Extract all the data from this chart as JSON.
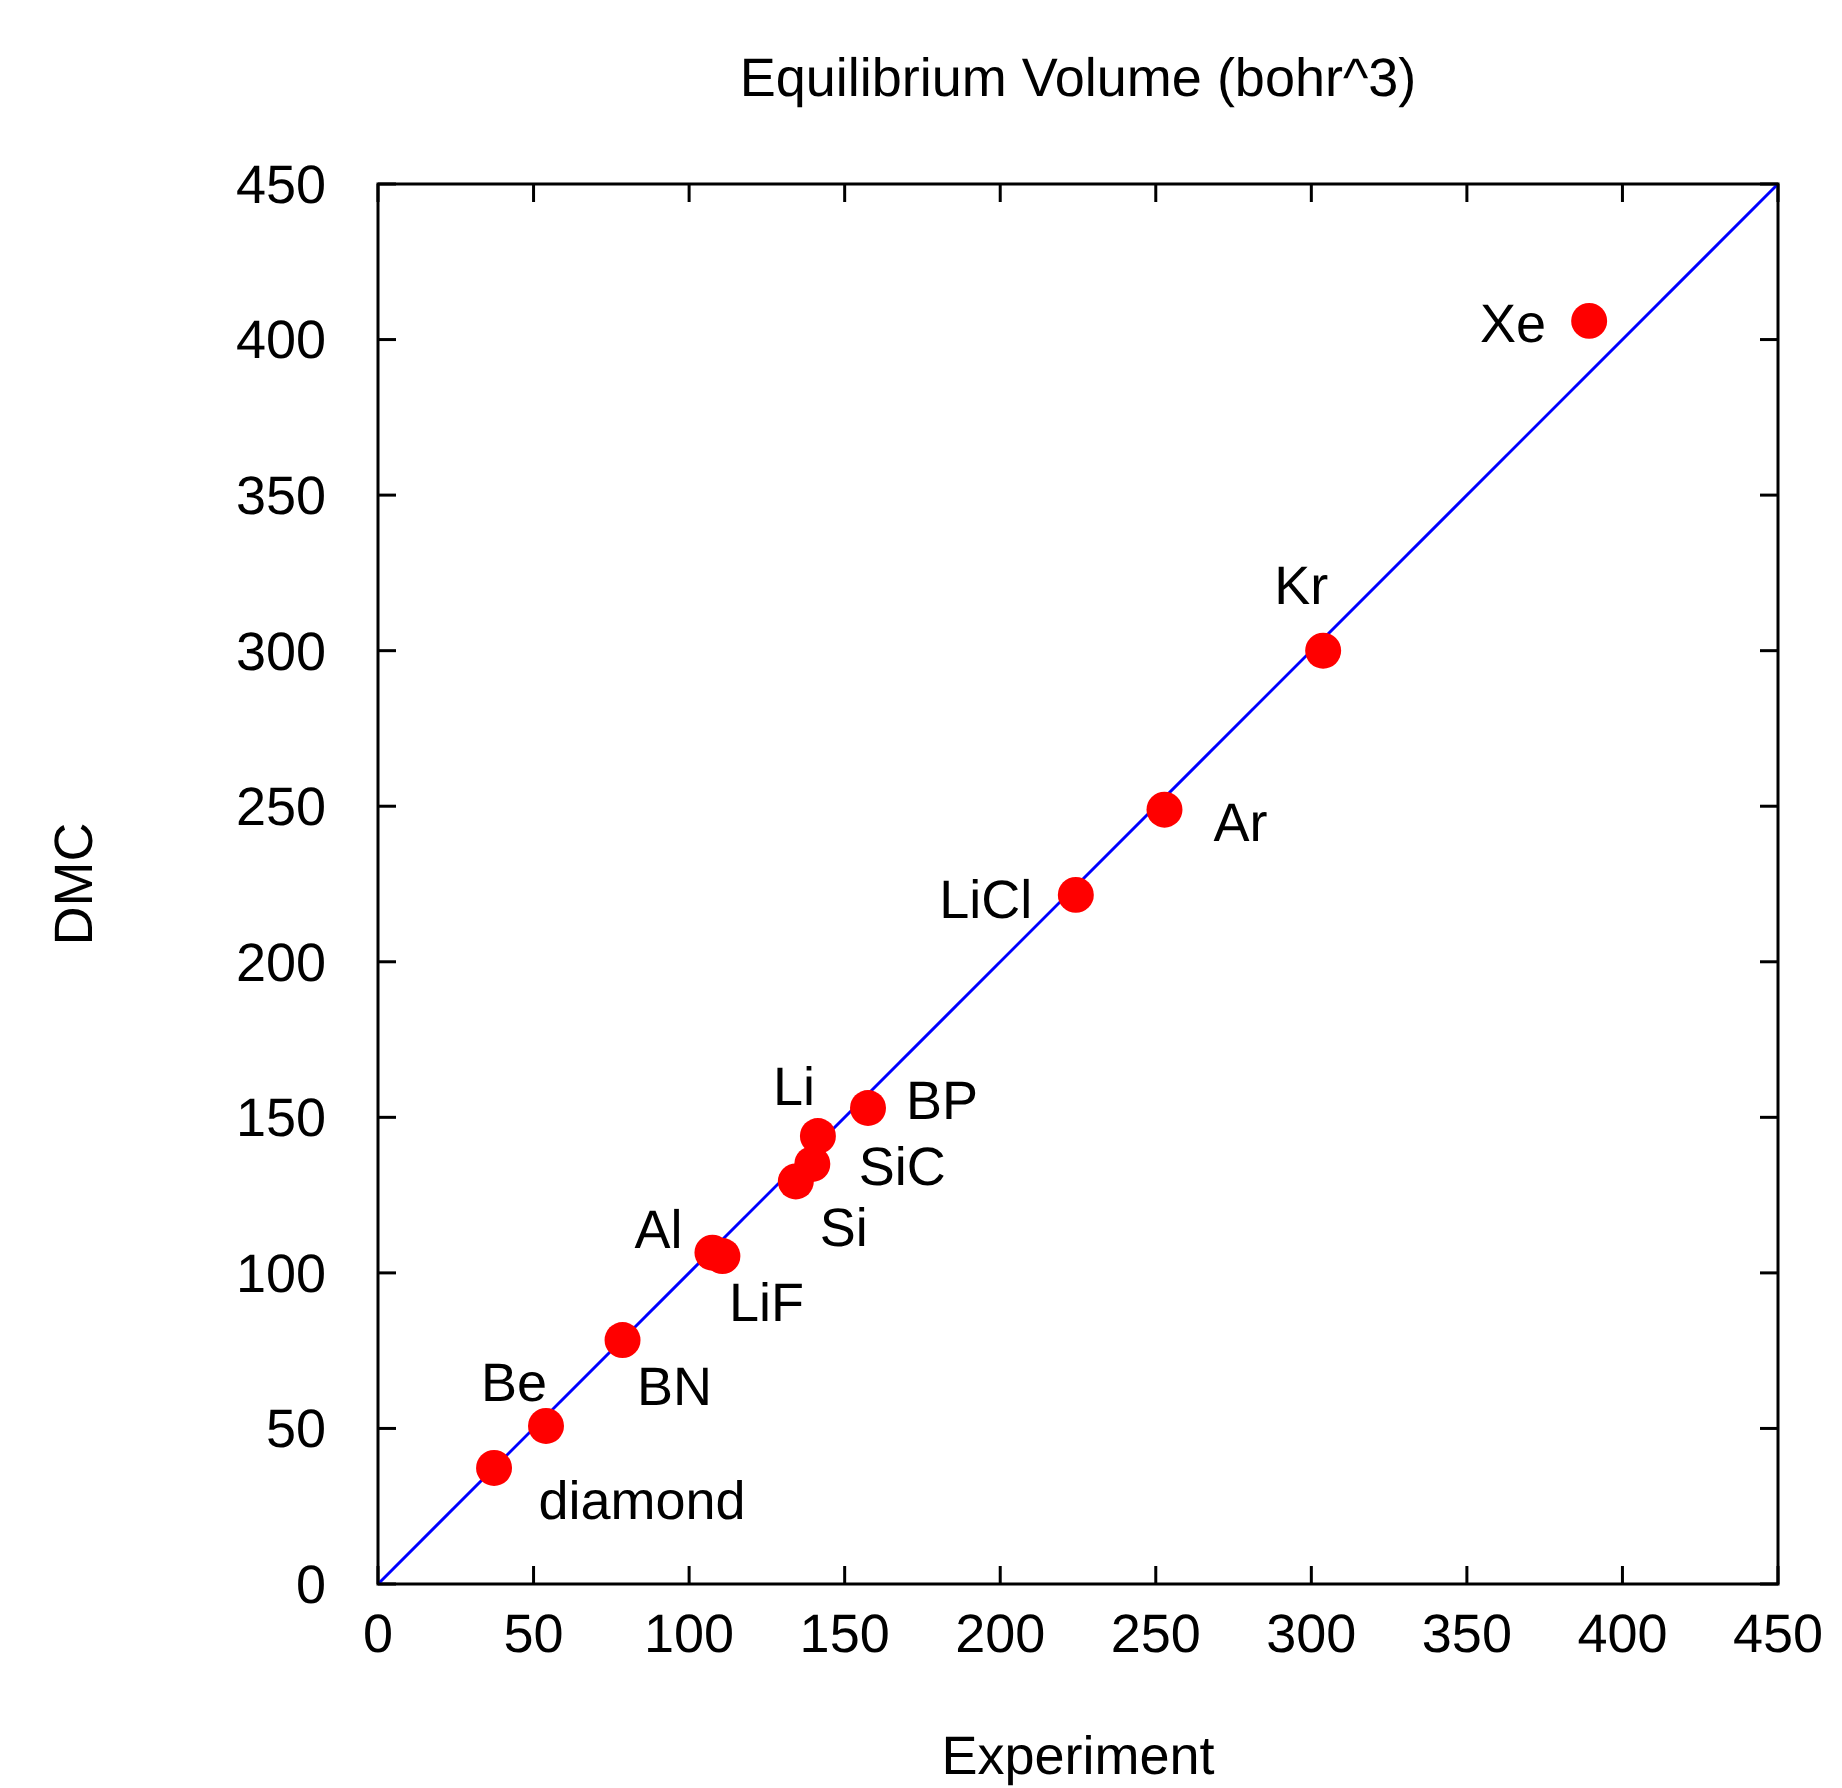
{
  "chart_data": {
    "type": "scatter",
    "title": "Equilibrium Volume (bohr^3)",
    "xlabel": "Experiment",
    "ylabel": "DMC",
    "xlim": [
      0,
      450
    ],
    "ylim": [
      0,
      450
    ],
    "xticks": [
      0,
      50,
      100,
      150,
      200,
      250,
      300,
      350,
      400,
      450
    ],
    "yticks": [
      0,
      50,
      100,
      150,
      200,
      250,
      300,
      350,
      400,
      450
    ],
    "marker": "circle",
    "series": [
      {
        "type": "line",
        "marker": "none",
        "color": "#0000ff",
        "x": [
          0,
          450
        ],
        "values": [
          0,
          450
        ]
      },
      {
        "color": "#ff0000",
        "x": [
          37.3,
          54,
          78.6,
          107.5,
          110.7,
          134.3,
          139.6,
          141.4,
          157.5,
          224.3,
          252.8,
          303.8,
          389.3
        ],
        "values": [
          37.3,
          50.8,
          78.4,
          106.5,
          105.4,
          129.4,
          135,
          144,
          153,
          221.5,
          248.9,
          300,
          406
        ]
      }
    ],
    "annotations": [
      {
        "text": "diamond",
        "x": 37.3,
        "y": 37.3
      },
      {
        "text": "Be",
        "x": 54,
        "y": 50.8
      },
      {
        "text": "BN",
        "x": 78.6,
        "y": 78.4
      },
      {
        "text": "Al",
        "x": 107.5,
        "y": 106.5
      },
      {
        "text": "LiF",
        "x": 110.7,
        "y": 105.4
      },
      {
        "text": "Si",
        "x": 134.3,
        "y": 129.4
      },
      {
        "text": "SiC",
        "x": 139.6,
        "y": 135
      },
      {
        "text": "Li",
        "x": 141.4,
        "y": 144
      },
      {
        "text": "BP",
        "x": 157.5,
        "y": 153
      },
      {
        "text": "LiCl",
        "x": 224.3,
        "y": 221.5
      },
      {
        "text": "Ar",
        "x": 252.8,
        "y": 248.9
      },
      {
        "text": "Kr",
        "x": 303.8,
        "y": 300
      },
      {
        "text": "Xe",
        "x": 389.3,
        "y": 406
      }
    ]
  }
}
